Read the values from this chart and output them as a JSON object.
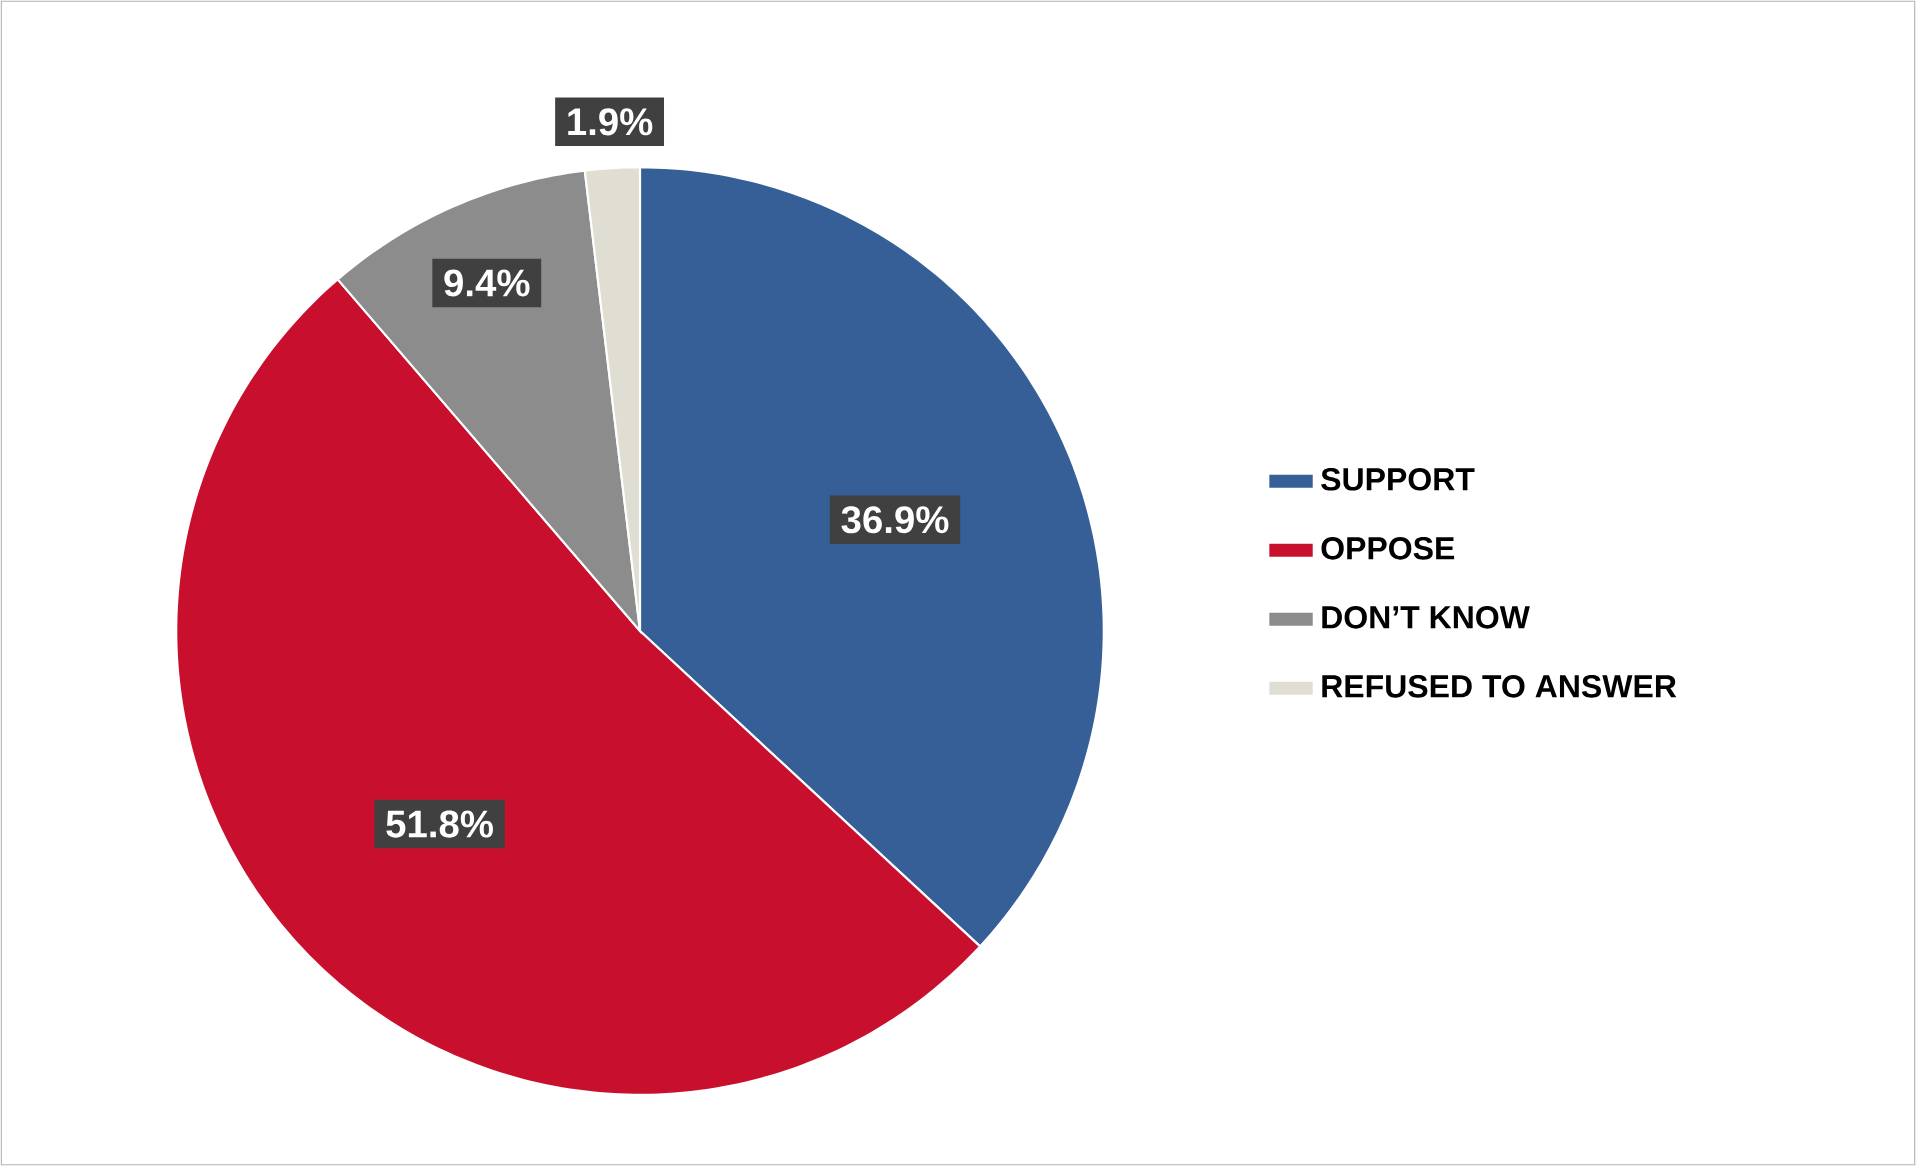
{
  "chart_data": {
    "type": "pie",
    "categories": [
      "SUPPORT",
      "OPPOSE",
      "DON’T KNOW",
      "REFUSED TO ANSWER"
    ],
    "values": [
      36.9,
      51.8,
      9.4,
      1.9
    ],
    "value_labels": [
      "36.9%",
      "51.8%",
      "9.4%",
      "1.9%"
    ],
    "colors": [
      "#355f96",
      "#c8102e",
      "#8c8c8c",
      "#e0ddd2"
    ],
    "legend": "right"
  }
}
